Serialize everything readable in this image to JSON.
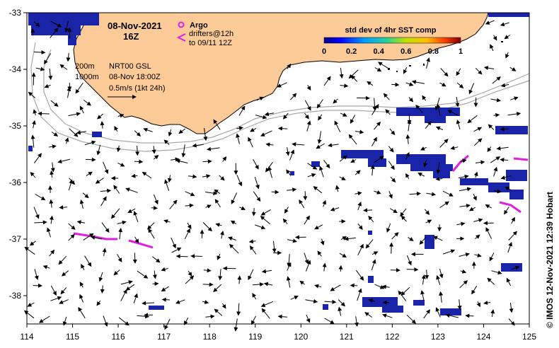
{
  "map": {
    "date_line1": "08-Nov-2021",
    "date_line2": "16Z",
    "legend": {
      "argo_label": "Argo",
      "drifters_label_1": "drifters@12h",
      "drifters_label_2": "to 09/11 12Z"
    },
    "isobaths": {
      "label_200": "200m",
      "label_1000": "1000m"
    },
    "currents": {
      "line1": "NRT00 GSL",
      "line2": "08-Nov 18:00Z",
      "line3": "0.5m/s (1kt 24h)"
    },
    "colorbar": {
      "title": "std dev of 4hr SST comp",
      "ticks": [
        "0",
        "0.2",
        "0.4",
        "0.6",
        "0.8",
        "1"
      ]
    },
    "credit": "© IMOS 12-Nov-2021 12:39 Hobart",
    "colors": {
      "land": "#fccb98",
      "ocean": "#ffffff",
      "sst_patch": "#1a24a8",
      "drifter": "#e020e0",
      "isobath": "#a8a8a8",
      "coast": "#000000"
    }
  },
  "chart_data": {
    "type": "map",
    "x_axis": {
      "ticks": [
        114,
        115,
        116,
        117,
        118,
        119,
        120,
        121,
        122,
        123,
        124,
        125
      ],
      "range": [
        114,
        125
      ]
    },
    "y_axis": {
      "ticks": [
        -33,
        -34,
        -35,
        -36,
        -37,
        -38
      ],
      "range": [
        -38.5,
        -33
      ]
    },
    "colorbar_range": [
      0,
      1
    ]
  }
}
